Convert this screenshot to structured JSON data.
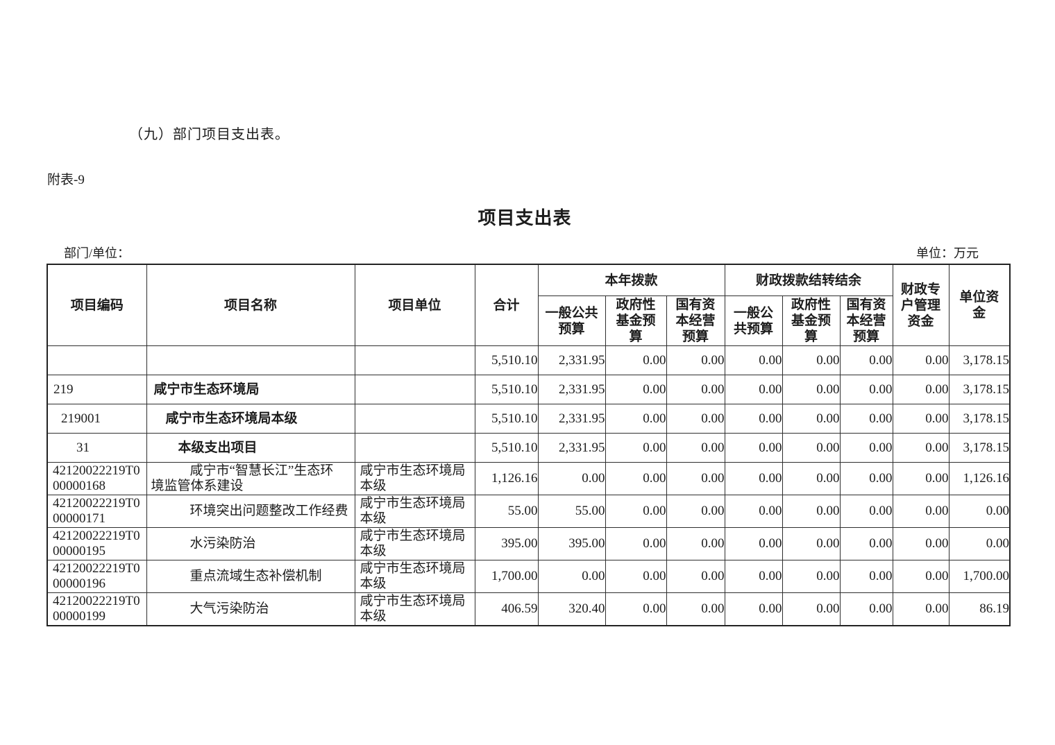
{
  "page": {
    "section_heading": "（九）部门项目支出表。",
    "attachment_label": "附表-9",
    "table_title": "项目支出表",
    "dept_label": "部门/单位：",
    "unit_label": "单位：万元"
  },
  "table": {
    "header": {
      "code": "项目编码",
      "name": "项目名称",
      "unit": "项目单位",
      "total": "合计",
      "current_year_group": "本年拨款",
      "carryover_group": "财政拨款结转结余",
      "cy_general": "一般公共\n预算",
      "cy_gov_fund": "政府性\n基金预\n算",
      "cy_state_capital": "国有资\n本经营\n预算",
      "co_general": "一般公\n共预算",
      "co_gov_fund": "政府性\n基金预\n算",
      "co_state_capital": "国有资\n本经营\n预算",
      "special_account": "财政专\n户管理\n资金",
      "unit_funds": "单位资\n金"
    },
    "rows": [
      {
        "level": "blank",
        "code": "",
        "name": "",
        "unit": "",
        "values": [
          "5,510.10",
          "2,331.95",
          "0.00",
          "0.00",
          "0.00",
          "0.00",
          "0.00",
          "0.00",
          "3,178.15"
        ]
      },
      {
        "level": "1",
        "code": "219",
        "name": "咸宁市生态环境局",
        "unit": "",
        "values": [
          "5,510.10",
          "2,331.95",
          "0.00",
          "0.00",
          "0.00",
          "0.00",
          "0.00",
          "0.00",
          "3,178.15"
        ]
      },
      {
        "level": "2",
        "code": "219001",
        "name": "咸宁市生态环境局本级",
        "unit": "",
        "values": [
          "5,510.10",
          "2,331.95",
          "0.00",
          "0.00",
          "0.00",
          "0.00",
          "0.00",
          "0.00",
          "3,178.15"
        ]
      },
      {
        "level": "3",
        "code": "31",
        "name": "本级支出项目",
        "unit": "",
        "values": [
          "5,510.10",
          "2,331.95",
          "0.00",
          "0.00",
          "0.00",
          "0.00",
          "0.00",
          "0.00",
          "3,178.15"
        ]
      },
      {
        "level": "item",
        "code": "42120022219T0\n00000168",
        "name": "咸宁市“智慧长江”生态环\n境监管体系建设",
        "unit": "咸宁市生态环境局\n本级",
        "values": [
          "1,126.16",
          "0.00",
          "0.00",
          "0.00",
          "0.00",
          "0.00",
          "0.00",
          "0.00",
          "1,126.16"
        ]
      },
      {
        "level": "item",
        "code": "42120022219T0\n00000171",
        "name": "环境突出问题整改工作经费",
        "unit": "咸宁市生态环境局\n本级",
        "values": [
          "55.00",
          "55.00",
          "0.00",
          "0.00",
          "0.00",
          "0.00",
          "0.00",
          "0.00",
          "0.00"
        ]
      },
      {
        "level": "item",
        "code": "42120022219T0\n00000195",
        "name": "水污染防治",
        "unit": "咸宁市生态环境局\n本级",
        "values": [
          "395.00",
          "395.00",
          "0.00",
          "0.00",
          "0.00",
          "0.00",
          "0.00",
          "0.00",
          "0.00"
        ]
      },
      {
        "level": "item",
        "code": "42120022219T0\n00000196",
        "name": "重点流域生态补偿机制",
        "unit": "咸宁市生态环境局\n本级",
        "values": [
          "1,700.00",
          "0.00",
          "0.00",
          "0.00",
          "0.00",
          "0.00",
          "0.00",
          "0.00",
          "1,700.00"
        ]
      },
      {
        "level": "item",
        "code": "42120022219T0\n00000199",
        "name": "大气污染防治",
        "unit": "咸宁市生态环境局\n本级",
        "values": [
          "406.59",
          "320.40",
          "0.00",
          "0.00",
          "0.00",
          "0.00",
          "0.00",
          "0.00",
          "86.19"
        ]
      }
    ]
  }
}
